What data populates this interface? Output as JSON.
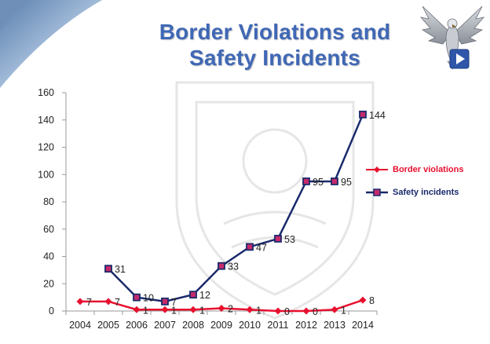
{
  "slide": {
    "title_line1": "Border Violations and",
    "title_line2": "Safety Incidents"
  },
  "colors": {
    "title": "#3f68b5",
    "border_violations": "#e8102f",
    "safety_incidents": "#1a2a6c",
    "safety_marker_fill": "#c62a6b"
  },
  "icons": {
    "emblem": "eagle-emblem-icon",
    "play": "play-icon"
  },
  "chart_data": {
    "type": "line",
    "x": [
      "2004",
      "2005",
      "2006",
      "2007",
      "2008",
      "2009",
      "2010",
      "2011",
      "2012",
      "2013",
      "2014"
    ],
    "ylim": [
      0,
      160
    ],
    "yticks": [
      0,
      20,
      40,
      60,
      80,
      100,
      120,
      140,
      160
    ],
    "grid": false,
    "legend_position": "right",
    "series": [
      {
        "name": "Border violations",
        "values": [
          7,
          7,
          1,
          1,
          1,
          2,
          1,
          0,
          0,
          1,
          8
        ],
        "marker": "diamond"
      },
      {
        "name": "Safety incidents",
        "values": [
          null,
          31,
          10,
          7,
          12,
          33,
          47,
          53,
          95,
          95,
          144
        ],
        "marker": "square"
      }
    ]
  }
}
